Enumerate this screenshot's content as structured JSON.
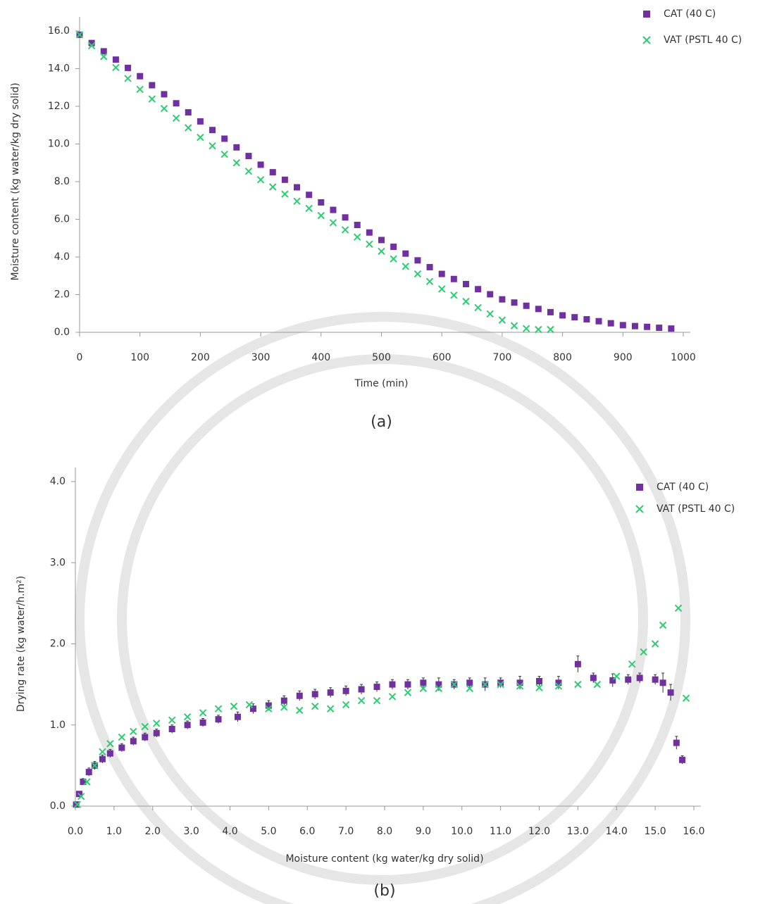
{
  "chart_data": [
    {
      "type": "scatter",
      "caption": "(a)",
      "xlabel": "Time (min)",
      "ylabel": "Moisture content (kg water/kg dry solid)",
      "xlim": [
        0,
        1000
      ],
      "xticks": [
        0,
        100,
        200,
        300,
        400,
        500,
        600,
        700,
        800,
        900,
        1000
      ],
      "ylim": [
        0,
        16
      ],
      "yticks": [
        {
          "value": 0,
          "label": "0.0"
        },
        {
          "value": 2,
          "label": "2.0"
        },
        {
          "value": 4,
          "label": "4.0"
        },
        {
          "value": 6,
          "label": "6.0"
        },
        {
          "value": 8,
          "label": "8.0"
        },
        {
          "value": 10,
          "label": "10.0"
        },
        {
          "value": 12,
          "label": "12.0"
        },
        {
          "value": 14,
          "label": "14.0"
        },
        {
          "value": 16,
          "label": "16.0"
        }
      ],
      "grid": false,
      "legend": "top-right",
      "series": [
        {
          "name": "CAT (40 C)",
          "color": "#7030a0",
          "marker": "square",
          "x": [
            0,
            20,
            40,
            60,
            80,
            100,
            120,
            140,
            160,
            180,
            200,
            220,
            240,
            260,
            280,
            300,
            320,
            340,
            360,
            380,
            400,
            420,
            440,
            460,
            480,
            500,
            520,
            540,
            560,
            580,
            600,
            620,
            640,
            660,
            680,
            700,
            720,
            740,
            760,
            780,
            800,
            820,
            840,
            860,
            880,
            900,
            920,
            940,
            960,
            980
          ],
          "values": [
            15.8,
            15.36,
            14.92,
            14.48,
            14.04,
            13.6,
            13.12,
            12.64,
            12.16,
            11.68,
            11.2,
            10.74,
            10.28,
            9.82,
            9.36,
            8.9,
            8.5,
            8.1,
            7.7,
            7.3,
            6.9,
            6.5,
            6.1,
            5.7,
            5.3,
            4.9,
            4.54,
            4.18,
            3.82,
            3.46,
            3.1,
            2.83,
            2.56,
            2.29,
            2.02,
            1.75,
            1.58,
            1.41,
            1.24,
            1.07,
            0.9,
            0.8,
            0.69,
            0.59,
            0.48,
            0.38,
            0.33,
            0.29,
            0.24,
            0.2
          ]
        },
        {
          "name": "VAT (PSTL 40 C)",
          "color": "#2ecc71",
          "marker": "cross",
          "x": [
            0,
            20,
            40,
            60,
            80,
            100,
            120,
            140,
            160,
            180,
            200,
            220,
            240,
            260,
            280,
            300,
            320,
            340,
            360,
            380,
            400,
            420,
            440,
            460,
            480,
            500,
            520,
            540,
            560,
            580,
            600,
            620,
            640,
            660,
            680,
            700,
            720,
            740,
            760,
            780
          ],
          "values": [
            15.8,
            15.22,
            14.64,
            14.06,
            13.48,
            12.9,
            12.39,
            11.88,
            11.37,
            10.86,
            10.35,
            9.9,
            9.45,
            9.0,
            8.55,
            8.1,
            7.72,
            7.34,
            6.96,
            6.58,
            6.2,
            5.82,
            5.44,
            5.06,
            4.68,
            4.3,
            3.9,
            3.5,
            3.1,
            2.7,
            2.3,
            1.97,
            1.64,
            1.31,
            0.98,
            0.65,
            0.35,
            0.2,
            0.15,
            0.15
          ]
        }
      ]
    },
    {
      "type": "scatter",
      "caption": "(b)",
      "xlabel": "Moisture content (kg water/kg dry solid)",
      "ylabel": "Drying rate (kg water/h.m²)",
      "xlim": [
        0,
        16
      ],
      "xticks": [
        {
          "value": 0,
          "label": "0.0"
        },
        {
          "value": 1,
          "label": "1.0"
        },
        {
          "value": 2,
          "label": "2.0"
        },
        {
          "value": 3,
          "label": "3.0"
        },
        {
          "value": 4,
          "label": "4.0"
        },
        {
          "value": 5,
          "label": "5.0"
        },
        {
          "value": 6,
          "label": "6.0"
        },
        {
          "value": 7,
          "label": "7.0"
        },
        {
          "value": 8,
          "label": "8.0"
        },
        {
          "value": 9,
          "label": "9.0"
        },
        {
          "value": 10,
          "label": "10.0"
        },
        {
          "value": 11,
          "label": "11.0"
        },
        {
          "value": 12,
          "label": "12.0"
        },
        {
          "value": 13,
          "label": "13.0"
        },
        {
          "value": 14,
          "label": "14.0"
        },
        {
          "value": 15,
          "label": "15.0"
        },
        {
          "value": 16,
          "label": "16.0"
        }
      ],
      "ylim": [
        0,
        4
      ],
      "yticks": [
        {
          "value": 0,
          "label": "0.0"
        },
        {
          "value": 1,
          "label": "1.0"
        },
        {
          "value": 2,
          "label": "2.0"
        },
        {
          "value": 3,
          "label": "3.0"
        },
        {
          "value": 4,
          "label": "4.0"
        }
      ],
      "grid": false,
      "legend": "top-right",
      "series": [
        {
          "name": "CAT (40 C)",
          "color": "#7030a0",
          "marker": "square",
          "x": [
            0.02,
            0.1,
            0.2,
            0.35,
            0.5,
            0.7,
            0.9,
            1.2,
            1.5,
            1.8,
            2.1,
            2.5,
            2.9,
            3.3,
            3.7,
            4.2,
            4.6,
            5.0,
            5.4,
            5.8,
            6.2,
            6.6,
            7.0,
            7.4,
            7.8,
            8.2,
            8.6,
            9.0,
            9.4,
            9.8,
            10.2,
            10.6,
            11.0,
            11.5,
            12.0,
            12.5,
            13.0,
            13.4,
            13.9,
            14.3,
            14.6,
            15.0,
            15.2,
            15.4,
            15.55,
            15.7
          ],
          "values": [
            0.02,
            0.15,
            0.3,
            0.42,
            0.5,
            0.58,
            0.65,
            0.72,
            0.8,
            0.85,
            0.9,
            0.95,
            1.0,
            1.03,
            1.07,
            1.1,
            1.2,
            1.24,
            1.3,
            1.36,
            1.38,
            1.4,
            1.42,
            1.44,
            1.47,
            1.5,
            1.5,
            1.52,
            1.5,
            1.5,
            1.52,
            1.5,
            1.52,
            1.52,
            1.54,
            1.52,
            1.75,
            1.58,
            1.55,
            1.56,
            1.58,
            1.56,
            1.52,
            1.4,
            0.78,
            0.57
          ],
          "errors": [
            0.02,
            0.03,
            0.04,
            0.05,
            0.05,
            0.05,
            0.05,
            0.05,
            0.05,
            0.05,
            0.05,
            0.05,
            0.05,
            0.05,
            0.05,
            0.06,
            0.06,
            0.06,
            0.06,
            0.06,
            0.06,
            0.06,
            0.06,
            0.06,
            0.06,
            0.06,
            0.06,
            0.06,
            0.08,
            0.06,
            0.06,
            0.08,
            0.06,
            0.08,
            0.06,
            0.08,
            0.1,
            0.06,
            0.08,
            0.06,
            0.06,
            0.06,
            0.12,
            0.1,
            0.08,
            0.05
          ]
        },
        {
          "name": "VAT (PSTL 40 C)",
          "color": "#2ecc71",
          "marker": "cross",
          "x": [
            0.05,
            0.15,
            0.3,
            0.5,
            0.7,
            0.9,
            1.2,
            1.5,
            1.8,
            2.1,
            2.5,
            2.9,
            3.3,
            3.7,
            4.1,
            4.5,
            5.0,
            5.4,
            5.8,
            6.2,
            6.6,
            7.0,
            7.4,
            7.8,
            8.2,
            8.6,
            9.0,
            9.4,
            9.8,
            10.2,
            10.6,
            11.0,
            11.5,
            12.0,
            12.5,
            13.0,
            13.5,
            14.0,
            14.4,
            14.7,
            15.0,
            15.2,
            15.6,
            15.8
          ],
          "values": [
            0.02,
            0.12,
            0.3,
            0.5,
            0.67,
            0.77,
            0.85,
            0.92,
            0.98,
            1.02,
            1.06,
            1.1,
            1.15,
            1.2,
            1.23,
            1.25,
            1.2,
            1.22,
            1.18,
            1.23,
            1.2,
            1.25,
            1.3,
            1.3,
            1.35,
            1.4,
            1.45,
            1.45,
            1.5,
            1.45,
            1.5,
            1.5,
            1.48,
            1.46,
            1.48,
            1.5,
            1.5,
            1.6,
            1.75,
            1.9,
            2.0,
            2.23,
            2.44,
            1.33
          ]
        }
      ]
    }
  ]
}
